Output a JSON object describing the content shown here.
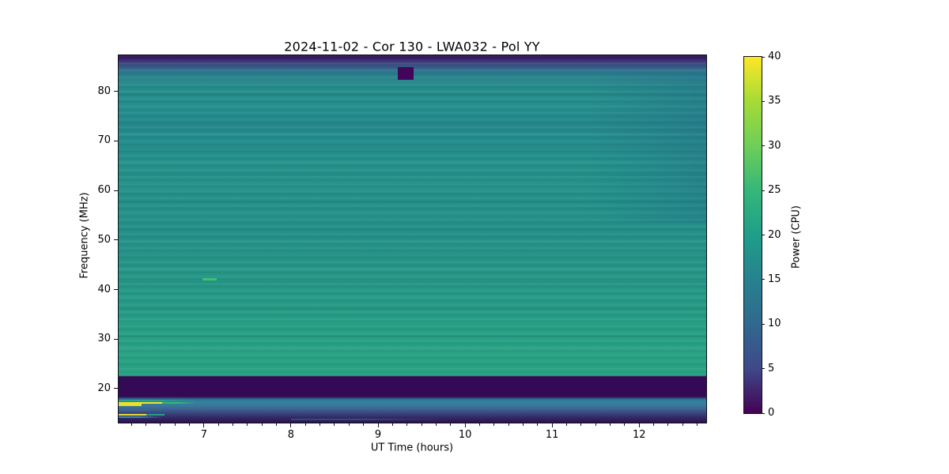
{
  "chart_data": {
    "type": "heatmap",
    "title": "2024-11-02 - Cor 130 - LWA032 - Pol YY",
    "xlabel": "UT Time (hours)",
    "ylabel": "Frequency (MHz)",
    "x_range": [
      6.02,
      12.77
    ],
    "y_range": [
      13.14,
      87.29
    ],
    "x_ticks": [
      7,
      8,
      9,
      10,
      11,
      12
    ],
    "x_minor_tick_interval_hours": 0.1667,
    "y_ticks": [
      20,
      30,
      40,
      50,
      60,
      70,
      80
    ],
    "grid": false,
    "colorbar": {
      "label": "Power (CPU)",
      "range": [
        0,
        40
      ],
      "ticks": [
        0,
        5,
        10,
        15,
        20,
        25,
        30,
        35,
        40
      ],
      "colormap": "viridis",
      "position": "right"
    },
    "background_bands": [
      {
        "freq_mhz": [
          86.3,
          87.3
        ],
        "power_cpu": 1,
        "note": "dark band at top edge"
      },
      {
        "freq_mhz": [
          84.0,
          86.3
        ],
        "power_cpu": 10,
        "note": "purple-to-teal transition"
      },
      {
        "freq_mhz": [
          22.4,
          84.0
        ],
        "power_cpu": 21,
        "note": "broadband teal emission with faint horizontal banding, slightly greener toward low frequencies"
      },
      {
        "freq_mhz": [
          18.4,
          22.4
        ],
        "power_cpu": 0,
        "note": "uniform dark filtered band"
      },
      {
        "freq_mhz": [
          17.4,
          18.4
        ],
        "power_cpu": 15,
        "note": "teal row spanning all times"
      },
      {
        "freq_mhz": [
          13.1,
          17.4
        ],
        "power_cpu": 4,
        "note": "mostly dark with narrowband RFI, strongest before 6.6 h"
      }
    ],
    "features": [
      {
        "name": "attenuated-patch",
        "t0": 9.23,
        "t1": 9.41,
        "f0": 82.3,
        "f1": 84.9,
        "power_cpu": 0,
        "color": "#42055c"
      },
      {
        "name": "green-enhancement",
        "t0": 6.98,
        "t1": 7.15,
        "f0": 41.9,
        "f1": 42.25,
        "power_cpu": 28,
        "color": "#3ebf72"
      },
      {
        "name": "rfi-teal-row",
        "t0": 6.02,
        "t1": 6.9,
        "f0": 17.45,
        "f1": 17.77,
        "power_cpu": 18,
        "color": "#2aa090",
        "fade": true
      },
      {
        "name": "rfi-yellow-line-1",
        "t0": 6.02,
        "t1": 6.52,
        "f0": 17.0,
        "f1": 17.35,
        "power_cpu": 40,
        "color": "#f3e32a"
      },
      {
        "name": "rfi-line-1-tail",
        "t0": 6.52,
        "t1": 6.92,
        "f0": 17.0,
        "f1": 17.35,
        "power_cpu": 25,
        "color": "#35b779",
        "fade": true
      },
      {
        "name": "rfi-yellow-line-2",
        "t0": 6.02,
        "t1": 6.28,
        "f0": 16.55,
        "f1": 16.9,
        "power_cpu": 38,
        "color": "#e9de2e"
      },
      {
        "name": "rfi-blue-rows",
        "t0": 6.02,
        "t1": 6.55,
        "f0": 15.55,
        "f1": 16.2,
        "power_cpu": 12,
        "color": "#3a6890",
        "fade": true
      },
      {
        "name": "rfi-yellow-line-3",
        "t0": 6.02,
        "t1": 6.34,
        "f0": 14.6,
        "f1": 14.95,
        "power_cpu": 38,
        "color": "#ecd93b"
      },
      {
        "name": "rfi-line-3-tail",
        "t0": 6.34,
        "t1": 6.55,
        "f0": 14.6,
        "f1": 14.95,
        "power_cpu": 22,
        "color": "#2a9d8a"
      },
      {
        "name": "rfi-teal-row-2",
        "t0": 6.02,
        "t1": 6.53,
        "f0": 14.05,
        "f1": 14.45,
        "power_cpu": 16,
        "color": "#2f8f9a",
        "fade": true
      },
      {
        "name": "rfi-faint-line",
        "t0": 8.0,
        "t1": 9.8,
        "f0": 13.7,
        "f1": 13.95,
        "power_cpu": 10,
        "color": "#20708c",
        "fade": true,
        "opacity": 0.6
      }
    ]
  }
}
